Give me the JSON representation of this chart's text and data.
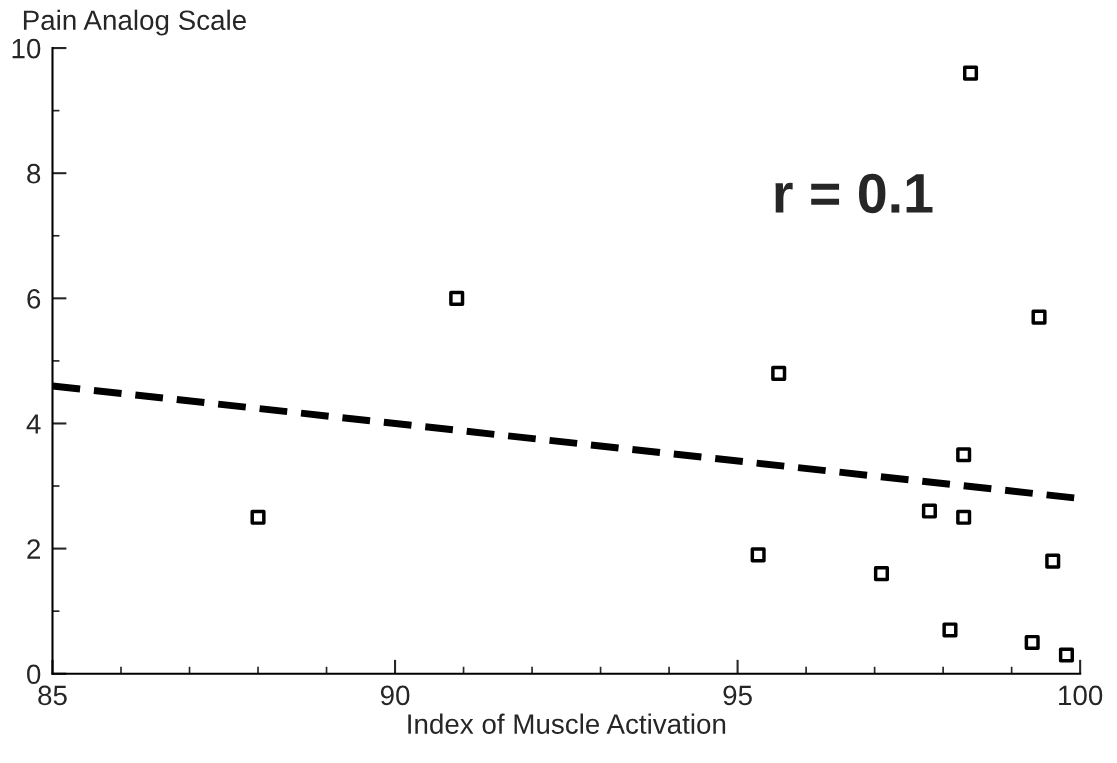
{
  "chart_data": {
    "type": "scatter",
    "xlabel": "Index of Muscle Activation",
    "ylabel": "Pain Analog Scale",
    "annotations": [
      "r = 0.1"
    ],
    "xlim": [
      85,
      100
    ],
    "xticks": [
      85,
      90,
      95,
      100
    ],
    "ylim": [
      0,
      10
    ],
    "yticks": [
      0,
      2,
      4,
      6,
      8,
      10
    ],
    "grid": false,
    "legend": false,
    "series": [
      {
        "color": "#000000",
        "marker": "square",
        "x": [
          88.0,
          90.9,
          98.4,
          99.4,
          95.6,
          95.3,
          97.1,
          97.8,
          98.3,
          98.3,
          98.1,
          99.3,
          99.6,
          99.8
        ],
        "values": [
          2.5,
          6.0,
          9.6,
          5.7,
          4.8,
          1.9,
          1.6,
          2.6,
          3.5,
          2.5,
          0.7,
          0.5,
          1.8,
          0.3
        ]
      },
      {
        "type": "line",
        "color": "#000000",
        "line_style": "dashed",
        "marker": "none",
        "x": [
          85,
          100
        ],
        "values": [
          4.6,
          2.8
        ]
      }
    ]
  }
}
